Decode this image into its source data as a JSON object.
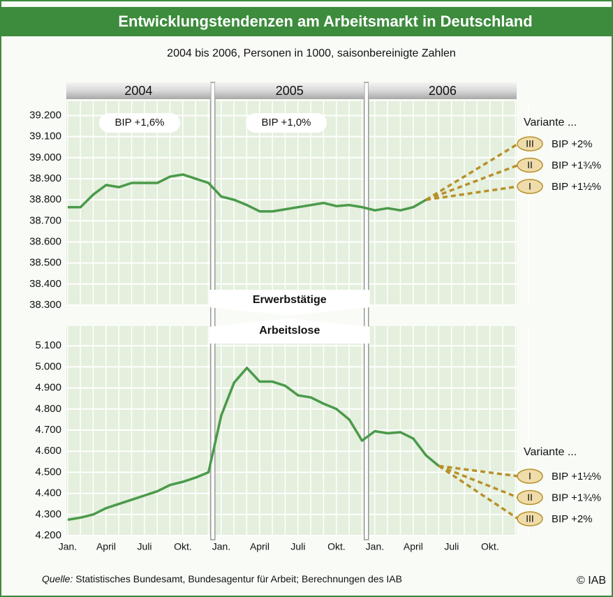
{
  "title": "Entwicklungstendenzen am Arbeitsmarkt in Deutschland",
  "subtitle": "2004 bis 2006, Personen in 1000, saisonbereinigte Zahlen",
  "years": [
    "2004",
    "2005",
    "2006"
  ],
  "source_label": "Quelle:",
  "source": "Statistisches Bundesamt, Bundesagentur für Arbeit; Berechnungen des IAB",
  "copyright": "© IAB",
  "chart_data": [
    {
      "type": "line",
      "series": [
        {
          "name": "Erwerbstätige",
          "color": "#4a9a4a",
          "values": [
            38765,
            38765,
            38825,
            38870,
            38860,
            38880,
            38880,
            38880,
            38910,
            38920,
            38900,
            38880,
            38815,
            38800,
            38775,
            38745,
            38745,
            38755,
            38765,
            38775,
            38785,
            38770,
            38775,
            38765,
            38750,
            38760,
            38750,
            38765,
            38800,
            null,
            null,
            null,
            null,
            null,
            null,
            null
          ]
        }
      ],
      "ylim": [
        38300,
        39200
      ],
      "yticks": [
        {
          "value": 38300,
          "label": "38.300"
        },
        {
          "value": 38400,
          "label": "38.400"
        },
        {
          "value": 38500,
          "label": "38.500"
        },
        {
          "value": 38600,
          "label": "38.600"
        },
        {
          "value": 38700,
          "label": "38.700"
        },
        {
          "value": 38800,
          "label": "38.800"
        },
        {
          "value": 38900,
          "label": "38.900"
        },
        {
          "value": 39000,
          "label": "39.000"
        },
        {
          "value": 39100,
          "label": "39.100"
        },
        {
          "value": 39200,
          "label": "39.200"
        }
      ],
      "annotations": [
        "BIP +1,6%",
        "BIP +1,0%"
      ],
      "variant_title": "Variante ...",
      "variants": [
        {
          "numeral": "III",
          "label": "BIP +2%"
        },
        {
          "numeral": "II",
          "label": "BIP +1¾%"
        },
        {
          "numeral": "I",
          "label": "BIP +1½%"
        }
      ],
      "grid": true
    },
    {
      "type": "line",
      "categories": [
        "Jan.",
        null,
        null,
        "April",
        null,
        null,
        "Juli",
        null,
        null,
        "Okt.",
        null,
        null,
        "Jan.",
        null,
        null,
        "April",
        null,
        null,
        "Juli",
        null,
        null,
        "Okt.",
        null,
        null,
        "Jan.",
        null,
        null,
        "April",
        null,
        null,
        "Juli",
        null,
        null,
        "Okt.",
        null,
        null
      ],
      "series": [
        {
          "name": "Arbeitslose",
          "color": "#4a9a4a",
          "values": [
            4275,
            4285,
            4300,
            4330,
            4350,
            4370,
            4390,
            4410,
            4440,
            4455,
            4475,
            4500,
            4770,
            4925,
            4995,
            4930,
            4930,
            4910,
            4865,
            4855,
            4825,
            4800,
            4750,
            4650,
            4695,
            4685,
            4690,
            4660,
            4580,
            4530,
            null,
            null,
            null,
            null,
            null,
            null
          ]
        }
      ],
      "ylim": [
        4200,
        5100
      ],
      "yticks": [
        {
          "value": 4200,
          "label": "4.200"
        },
        {
          "value": 4300,
          "label": "4.300"
        },
        {
          "value": 4400,
          "label": "4.400"
        },
        {
          "value": 4500,
          "label": "4.500"
        },
        {
          "value": 4600,
          "label": "4.600"
        },
        {
          "value": 4700,
          "label": "4.700"
        },
        {
          "value": 4800,
          "label": "4.800"
        },
        {
          "value": 4900,
          "label": "4.900"
        },
        {
          "value": 5000,
          "label": "5.000"
        },
        {
          "value": 5100,
          "label": "5.100"
        }
      ],
      "variant_title": "Variante ...",
      "variants": [
        {
          "numeral": "I",
          "label": "BIP +1½%"
        },
        {
          "numeral": "II",
          "label": "BIP +1¾%"
        },
        {
          "numeral": "III",
          "label": "BIP +2%"
        }
      ],
      "grid": true
    }
  ]
}
